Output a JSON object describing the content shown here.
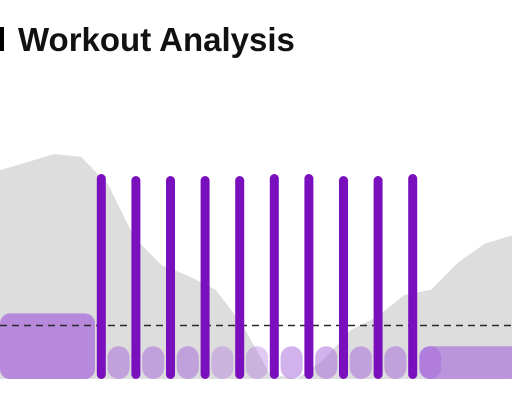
{
  "header": {
    "title": "Workout Analysis"
  },
  "chart_data": {
    "type": "bar",
    "title": "Workout Analysis",
    "intervals": [
      {
        "kind": "recovery",
        "intensity": 0.32,
        "opacity": 0.7
      },
      {
        "kind": "work",
        "intensity": 1.0
      },
      {
        "kind": "recovery",
        "intensity": 0.16,
        "opacity": 0.5
      },
      {
        "kind": "work",
        "intensity": 0.99
      },
      {
        "kind": "recovery",
        "intensity": 0.16,
        "opacity": 0.5
      },
      {
        "kind": "work",
        "intensity": 0.99
      },
      {
        "kind": "recovery",
        "intensity": 0.16,
        "opacity": 0.5
      },
      {
        "kind": "work",
        "intensity": 0.99
      },
      {
        "kind": "recovery",
        "intensity": 0.16,
        "opacity": 0.35
      },
      {
        "kind": "work",
        "intensity": 0.99
      },
      {
        "kind": "recovery",
        "intensity": 0.16,
        "opacity": 0.35
      },
      {
        "kind": "work",
        "intensity": 1.0
      },
      {
        "kind": "recovery",
        "intensity": 0.16,
        "opacity": 0.5
      },
      {
        "kind": "work",
        "intensity": 1.0
      },
      {
        "kind": "recovery",
        "intensity": 0.16,
        "opacity": 0.5
      },
      {
        "kind": "work",
        "intensity": 0.99
      },
      {
        "kind": "recovery",
        "intensity": 0.16,
        "opacity": 0.5
      },
      {
        "kind": "work",
        "intensity": 0.99
      },
      {
        "kind": "recovery",
        "intensity": 0.16,
        "opacity": 0.5
      },
      {
        "kind": "work",
        "intensity": 1.0
      },
      {
        "kind": "recovery",
        "intensity": 0.16,
        "opacity": 0.5
      },
      {
        "kind": "recovery",
        "intensity": 0.16,
        "opacity": 0.6
      }
    ],
    "reference_line": {
      "intensity": 0.3,
      "style": "dashed"
    },
    "elevation_profile": [
      0.77,
      0.8,
      0.83,
      0.82,
      0.72,
      0.52,
      0.42,
      0.38,
      0.33,
      0.2,
      0.02,
      0.0,
      0.07,
      0.18,
      0.23,
      0.31,
      0.33,
      0.43,
      0.5,
      0.53
    ],
    "grid": false,
    "legend": "none",
    "colors": {
      "work": "#7a0fbd",
      "recovery": "#a565dc",
      "elevation": "#d9d9d9",
      "reference_line": "#2b2b2b"
    }
  }
}
